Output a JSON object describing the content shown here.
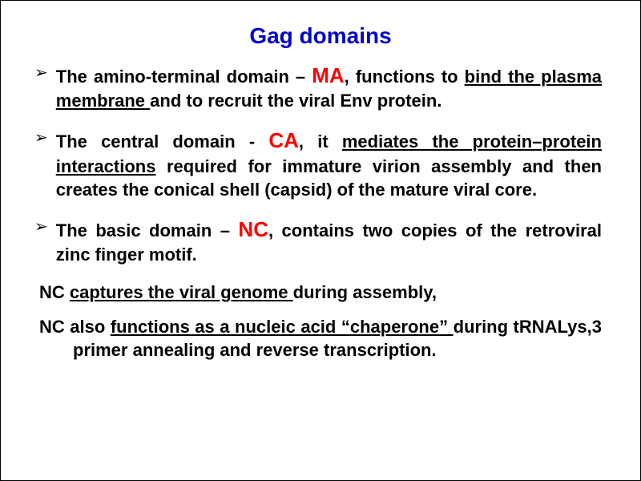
{
  "title": {
    "text": "Gag domains",
    "color": "#0000cc",
    "fontsize": 28
  },
  "highlight_color": "#ff0000",
  "text_color": "#000000",
  "body_fontsize": 22,
  "bullets": [
    {
      "pre": "The amino-terminal domain – ",
      "hi": "MA",
      "post1": ", functions to ",
      "u1": "bind the plasma membrane ",
      "post2": "and to recruit the viral Env protein."
    },
    {
      "pre": "The central domain - ",
      "hi": "CA",
      "post1": ", it ",
      "u1": "mediates the protein–protein interactions",
      "post2": " required for immature virion assembly and then creates the conical shell (capsid) of the mature viral core."
    },
    {
      "pre": "The basic domain – ",
      "hi": "NC",
      "post1": ", contains two copies of the retroviral zinc finger motif.",
      "u1": "",
      "post2": ""
    }
  ],
  "plain": [
    {
      "pre": "NC ",
      "u": "captures the viral genome ",
      "post": "during assembly,"
    },
    {
      "pre": "NC also ",
      "u": "functions as a nucleic acid “chaperone” ",
      "post": "during tRNALys,3 primer annealing and reverse transcription."
    }
  ]
}
